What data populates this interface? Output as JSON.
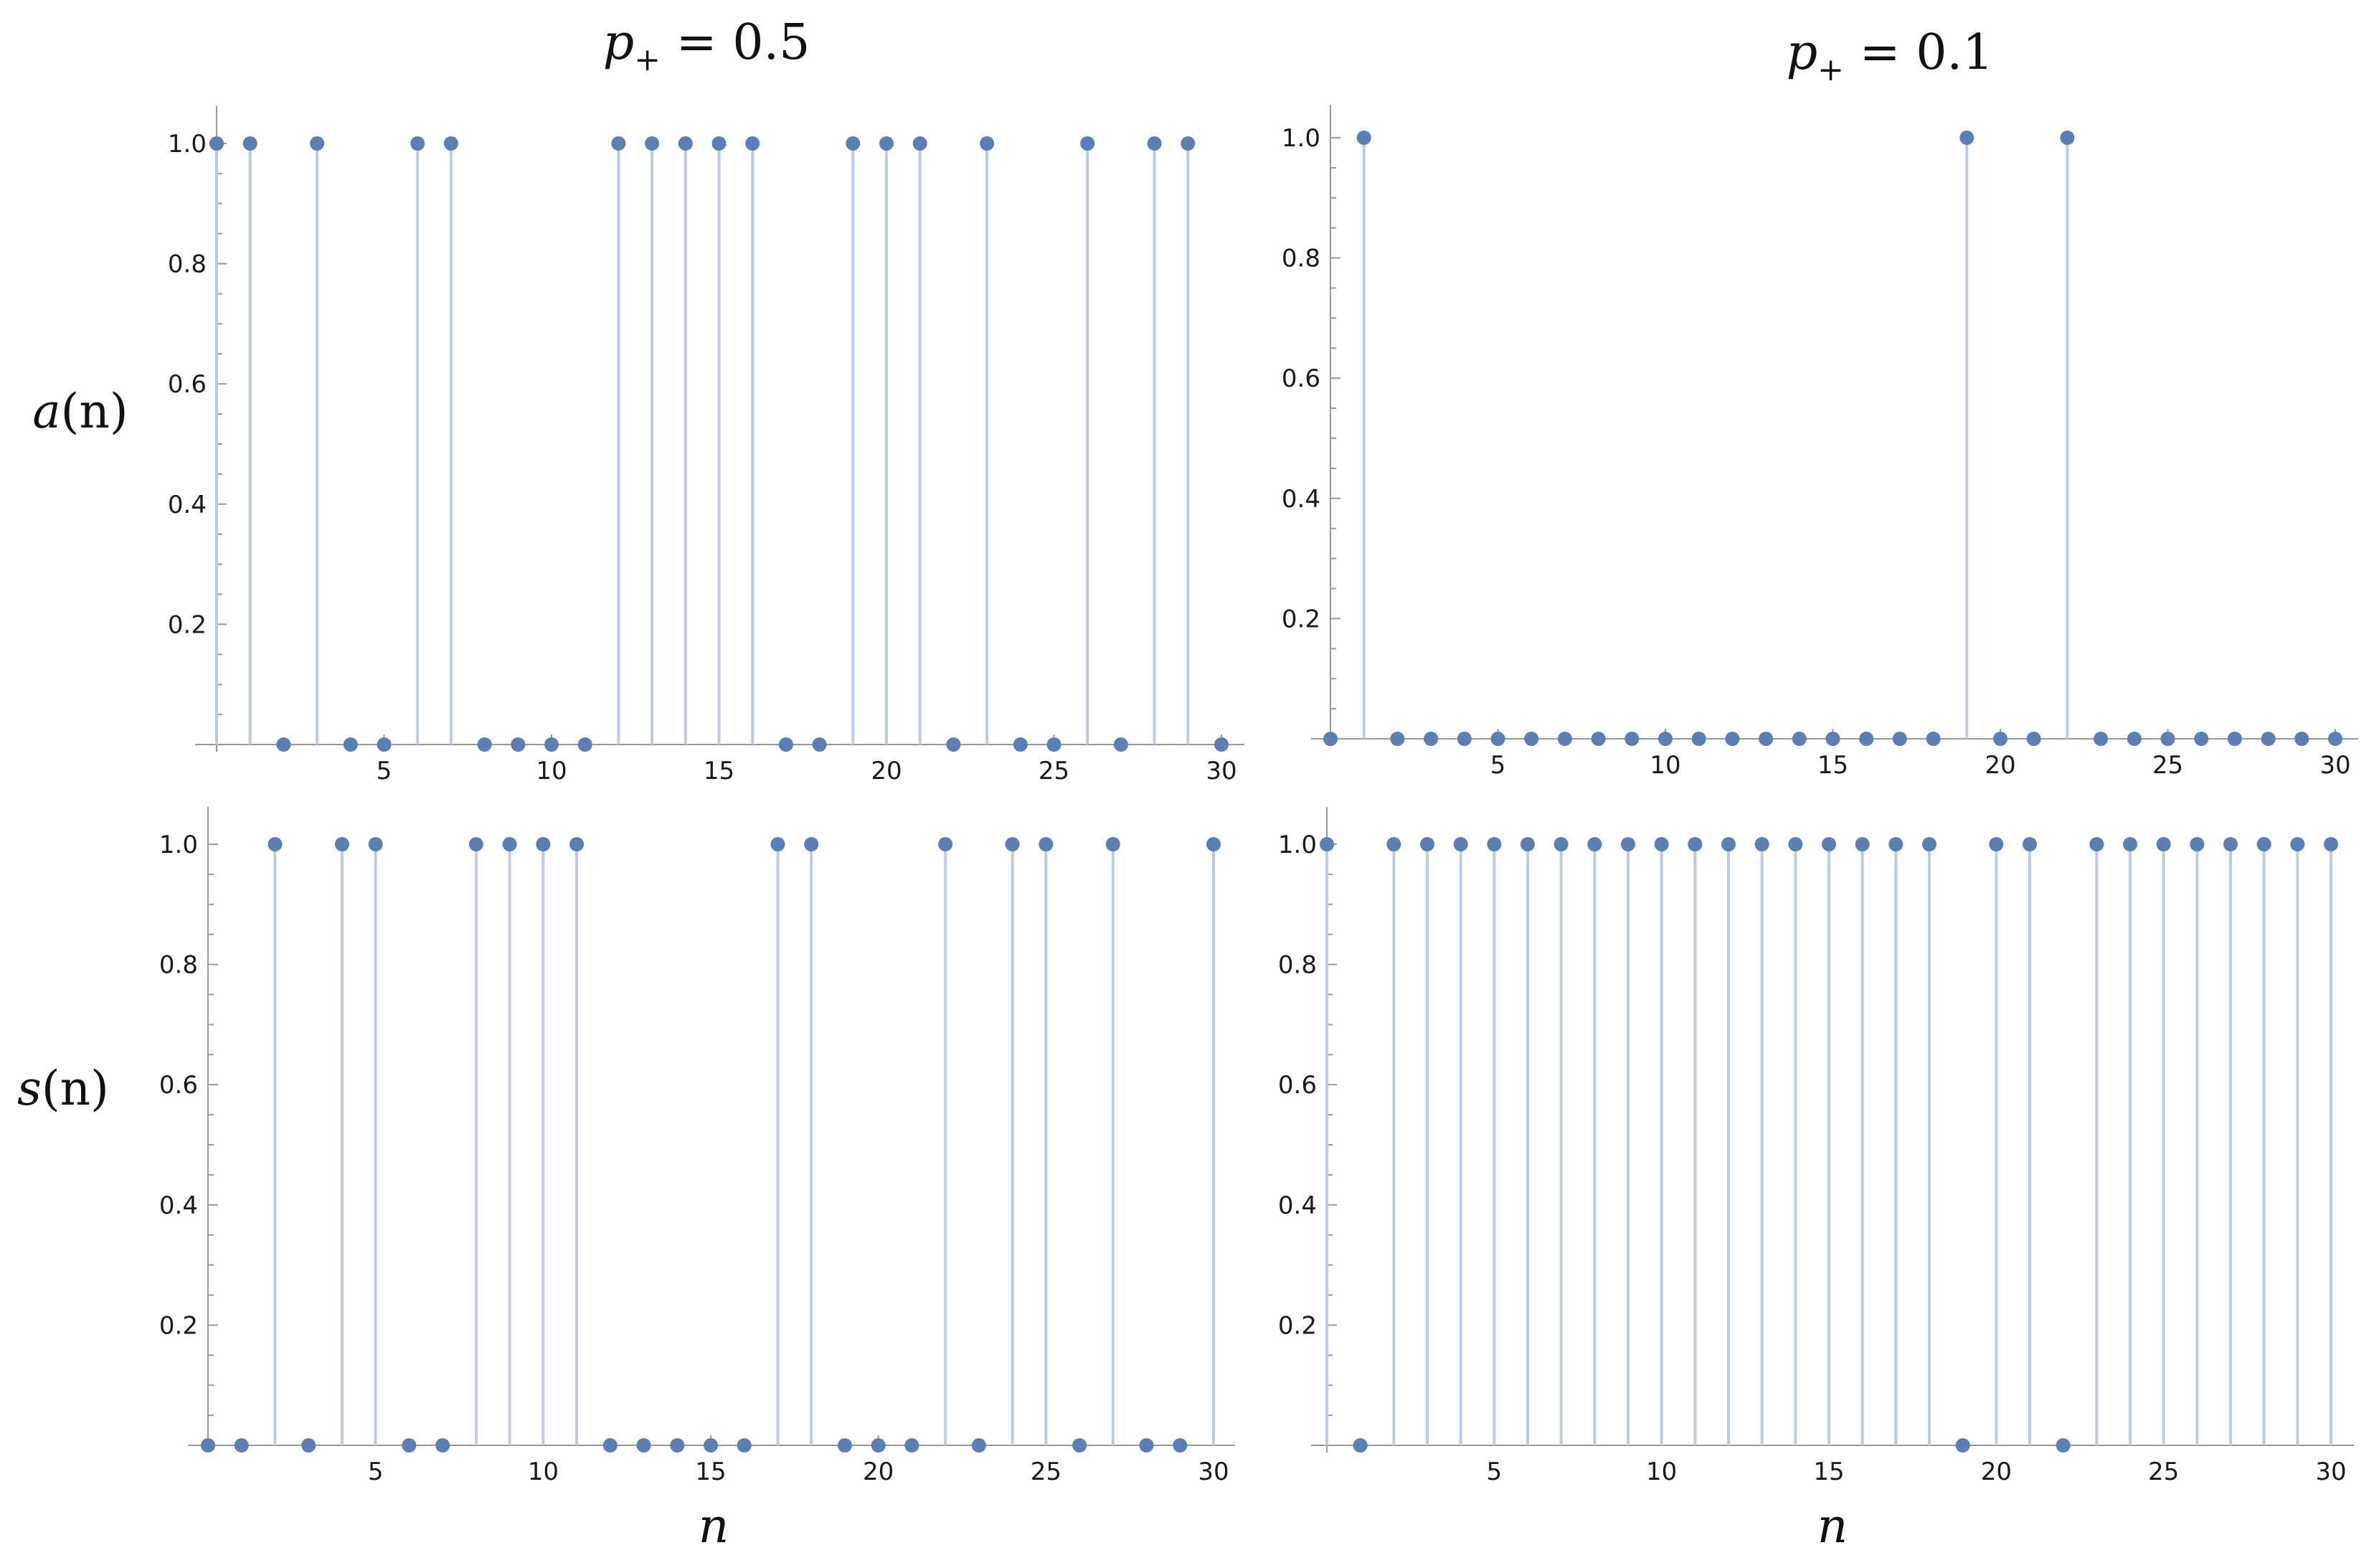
{
  "figure": {
    "col_titles": [
      {
        "var": "p",
        "sub": "+",
        "eq": " = 0.5"
      },
      {
        "var": "p",
        "sub": "+",
        "eq": " = 0.1"
      }
    ],
    "row_labels": [
      {
        "var": "a",
        "arg": "(n)",
        "arg_var": "n"
      },
      {
        "var": "s",
        "arg": "(n)",
        "arg_var": "n"
      }
    ],
    "x_label": "n"
  },
  "colors": {
    "point": "#5b7fb4",
    "stem": "#bdcbe1",
    "axis": "#9a9a9a",
    "tick": "#9a9a9a",
    "label": "#1a1a1a"
  },
  "chart_data": [
    {
      "type": "scatter",
      "style": "stem",
      "panel": "a(n), p+ = 0.5",
      "x": [
        0,
        1,
        2,
        3,
        4,
        5,
        6,
        7,
        8,
        9,
        10,
        11,
        12,
        13,
        14,
        15,
        16,
        17,
        18,
        19,
        20,
        21,
        22,
        23,
        24,
        25,
        26,
        27,
        28,
        29,
        30
      ],
      "y": [
        1,
        1,
        0,
        1,
        0,
        0,
        1,
        1,
        0,
        0,
        0,
        0,
        1,
        1,
        1,
        1,
        1,
        0,
        0,
        1,
        1,
        1,
        0,
        1,
        0,
        0,
        1,
        0,
        1,
        1,
        0
      ],
      "xlim": [
        0,
        30.7
      ],
      "ylim": [
        0,
        1.05
      ],
      "xticks": [
        "5",
        "10",
        "15",
        "20",
        "25",
        "30"
      ],
      "yticks": [
        "0.2",
        "0.4",
        "0.6",
        "0.8",
        "1.0"
      ]
    },
    {
      "type": "scatter",
      "style": "stem",
      "panel": "a(n), p+ = 0.1",
      "x": [
        0,
        1,
        2,
        3,
        4,
        5,
        6,
        7,
        8,
        9,
        10,
        11,
        12,
        13,
        14,
        15,
        16,
        17,
        18,
        19,
        20,
        21,
        22,
        23,
        24,
        25,
        26,
        27,
        28,
        29,
        30
      ],
      "y": [
        0,
        1,
        0,
        0,
        0,
        0,
        0,
        0,
        0,
        0,
        0,
        0,
        0,
        0,
        0,
        0,
        0,
        0,
        0,
        1,
        0,
        0,
        1,
        0,
        0,
        0,
        0,
        0,
        0,
        0,
        0
      ],
      "xlim": [
        0,
        30.7
      ],
      "ylim": [
        0,
        1.05
      ],
      "xticks": [
        "5",
        "10",
        "15",
        "20",
        "25",
        "30"
      ],
      "yticks": [
        "0.2",
        "0.4",
        "0.6",
        "0.8",
        "1.0"
      ]
    },
    {
      "type": "scatter",
      "style": "stem",
      "panel": "s(n), p+ = 0.5",
      "x": [
        0,
        1,
        2,
        3,
        4,
        5,
        6,
        7,
        8,
        9,
        10,
        11,
        12,
        13,
        14,
        15,
        16,
        17,
        18,
        19,
        20,
        21,
        22,
        23,
        24,
        25,
        26,
        27,
        28,
        29,
        30
      ],
      "y": [
        0,
        0,
        1,
        0,
        1,
        1,
        0,
        0,
        1,
        1,
        1,
        1,
        0,
        0,
        0,
        0,
        0,
        1,
        1,
        0,
        0,
        0,
        1,
        0,
        1,
        1,
        0,
        1,
        0,
        0,
        1
      ],
      "xlim": [
        0,
        30.7
      ],
      "ylim": [
        0,
        1.05
      ],
      "xticks": [
        "5",
        "10",
        "15",
        "20",
        "25",
        "30"
      ],
      "yticks": [
        "0.2",
        "0.4",
        "0.6",
        "0.8",
        "1.0"
      ]
    },
    {
      "type": "scatter",
      "style": "stem",
      "panel": "s(n), p+ = 0.1",
      "x": [
        0,
        1,
        2,
        3,
        4,
        5,
        6,
        7,
        8,
        9,
        10,
        11,
        12,
        13,
        14,
        15,
        16,
        17,
        18,
        19,
        20,
        21,
        22,
        23,
        24,
        25,
        26,
        27,
        28,
        29,
        30
      ],
      "y": [
        1,
        0,
        1,
        1,
        1,
        1,
        1,
        1,
        1,
        1,
        1,
        1,
        1,
        1,
        1,
        1,
        1,
        1,
        1,
        0,
        1,
        1,
        0,
        1,
        1,
        1,
        1,
        1,
        1,
        1,
        1
      ],
      "xlim": [
        0,
        30.7
      ],
      "ylim": [
        0,
        1.05
      ],
      "xticks": [
        "5",
        "10",
        "15",
        "20",
        "25",
        "30"
      ],
      "yticks": [
        "0.2",
        "0.4",
        "0.6",
        "0.8",
        "1.0"
      ]
    }
  ]
}
